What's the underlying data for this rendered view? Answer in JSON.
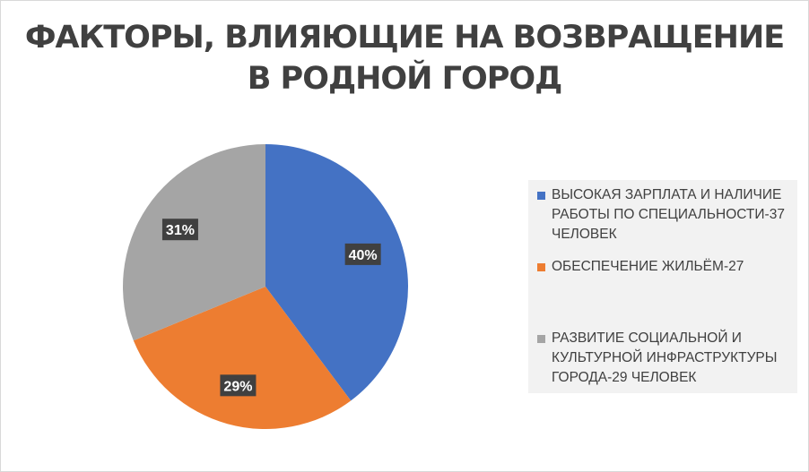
{
  "chart_data": {
    "type": "pie",
    "title_lines": [
      "ФАКТОРЫ, ВЛИЯЮЩИЕ НА ВОЗВРАЩЕНИЕ",
      "В РОДНОЙ ГОРОД"
    ],
    "slices": [
      {
        "label": "ВЫСОКАЯ ЗАРПЛАТА И НАЛИЧИЕ РАБОТЫ ПО СПЕЦИАЛЬНОСТИ-37 ЧЕЛОВЕК",
        "value": 37,
        "percent_label": "40%",
        "color": "#4472c4"
      },
      {
        "label": "ОБЕСПЕЧЕНИЕ ЖИЛЬЁМ-27",
        "value": 27,
        "percent_label": "29%",
        "color": "#ed7d31"
      },
      {
        "label": "РАЗВИТИЕ СОЦИАЛЬНОЙ И КУЛЬТУРНОЙ ИНФРАСТРУКТУРЫ ГОРОДА-29 ЧЕЛОВЕК",
        "value": 29,
        "percent_label": "31%",
        "color": "#a5a5a5"
      }
    ],
    "start_angle": "12 o'clock",
    "direction": "clockwise",
    "legend_position": "right"
  }
}
